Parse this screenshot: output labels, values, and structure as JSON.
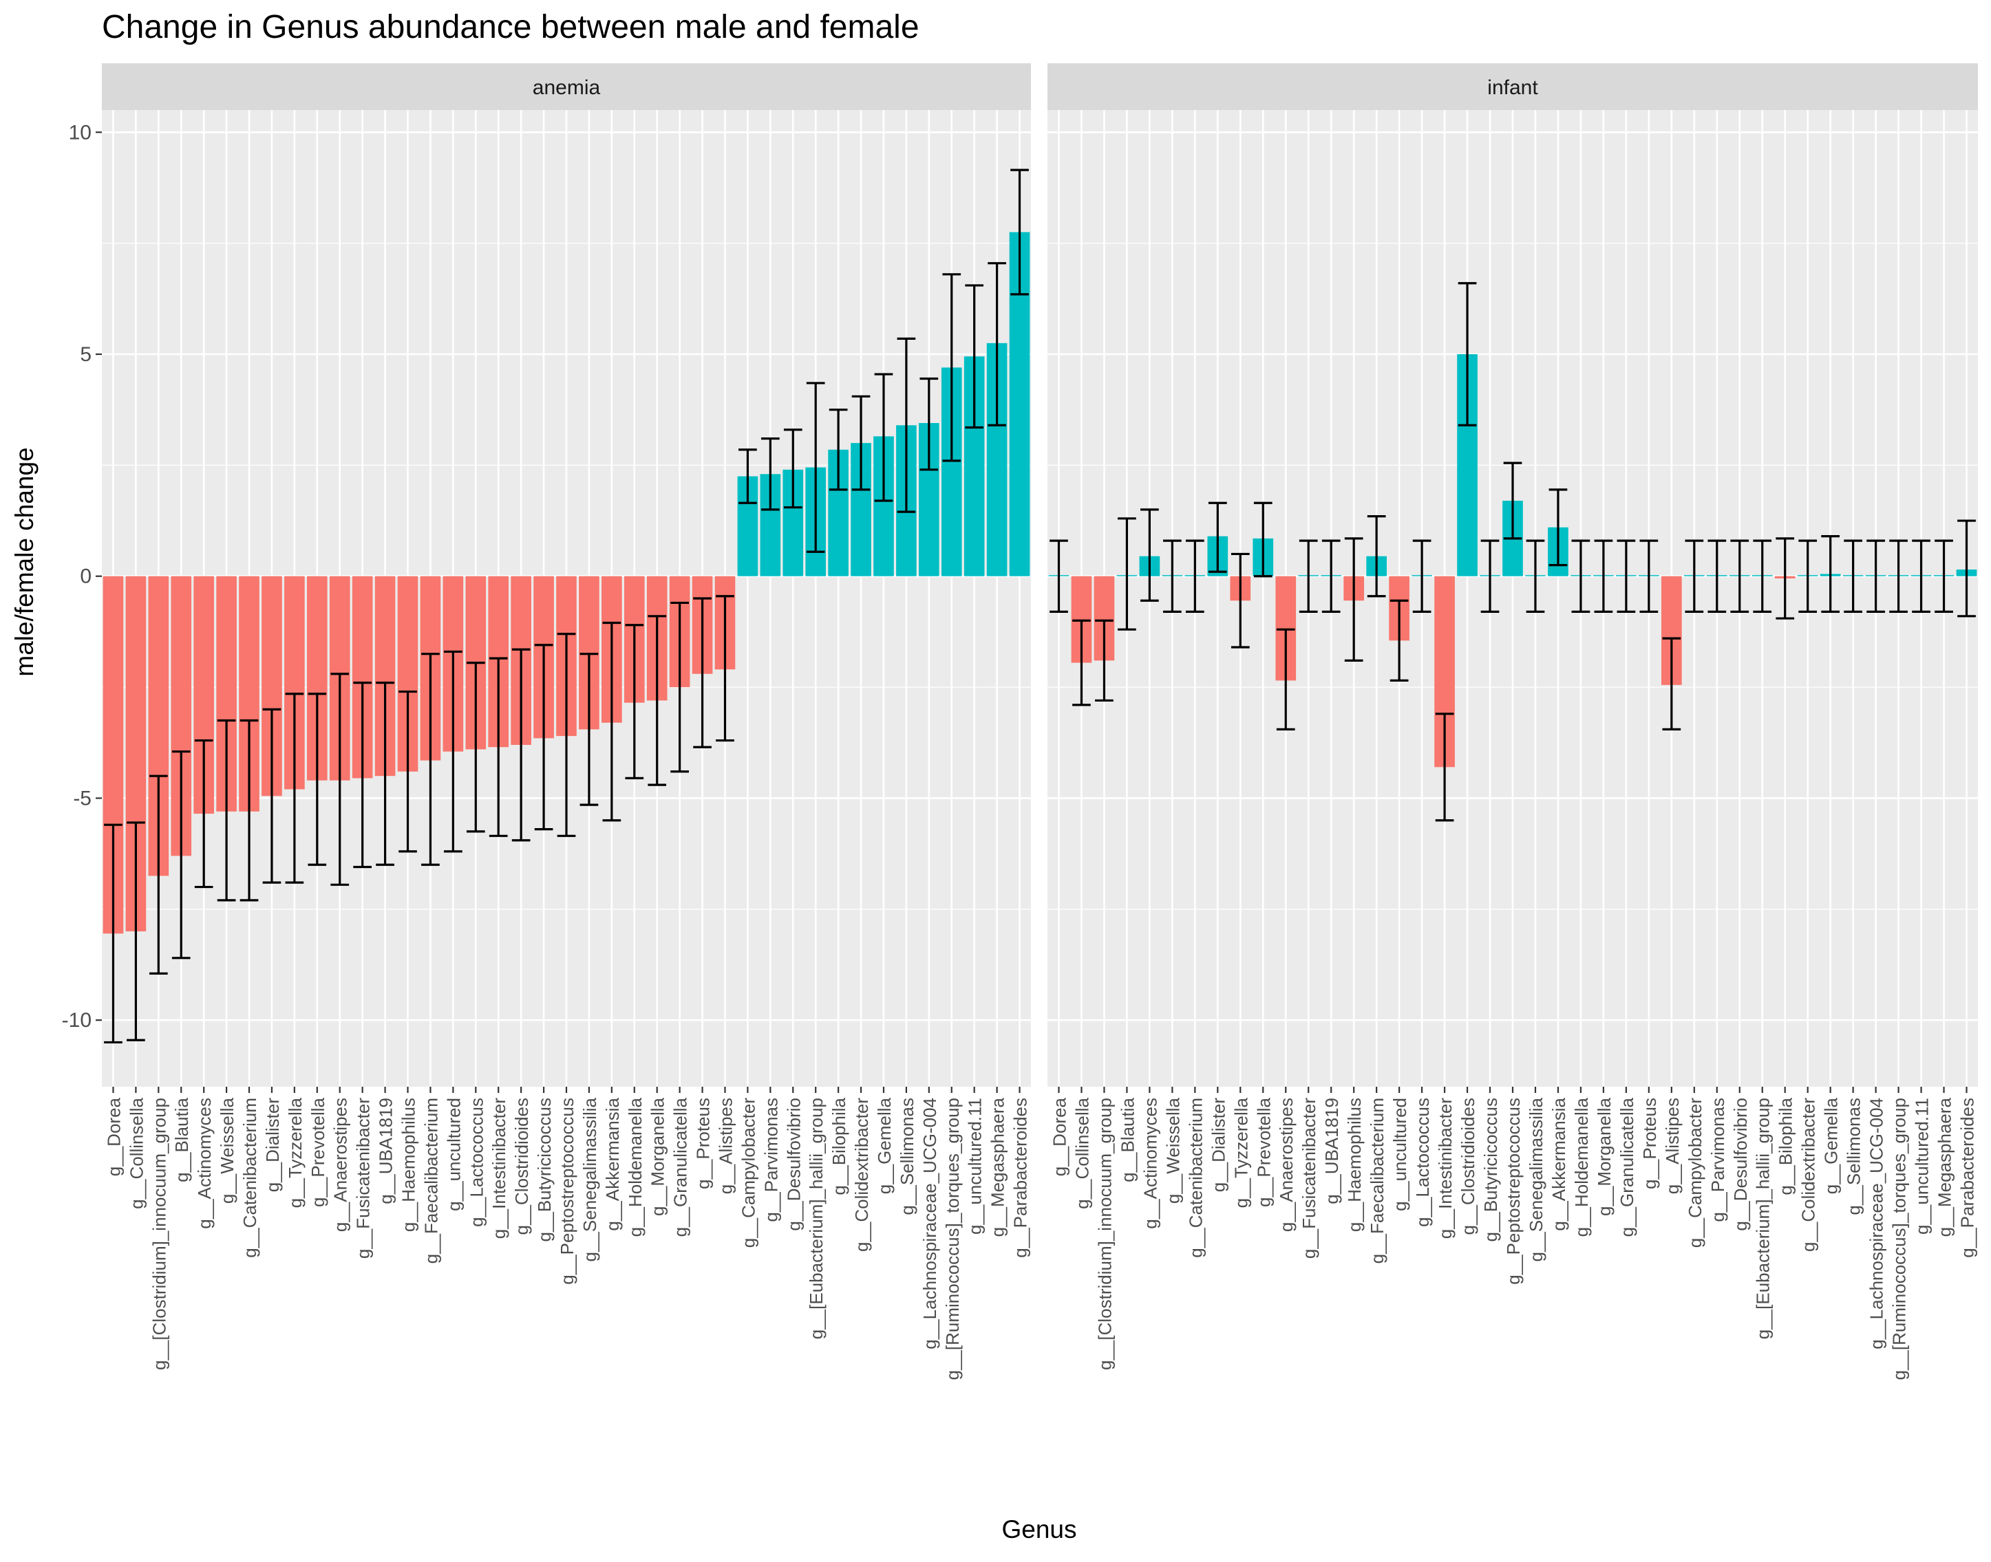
{
  "chart_data": {
    "type": "bar",
    "title": "Change in Genus abundance between male and female",
    "xlabel": "Genus",
    "ylabel": "male/female change",
    "ylim": [
      -11.5,
      10.5
    ],
    "yticks": [
      10,
      5,
      0,
      -5,
      -10
    ],
    "ytick_labels": [
      "10",
      "5",
      "0",
      "-5",
      "-10"
    ],
    "grid": true,
    "legend": "none",
    "colors": {
      "negative": "#F8766D",
      "positive": "#00BFC4",
      "panel": "#EBEBEB",
      "strip": "#D9D9D9",
      "grid": "#FFFFFF",
      "errorbar": "#000000"
    },
    "categories": [
      "g__Dorea",
      "g__Collinsella",
      "g__[Clostridium]_innocuum_group",
      "g__Blautia",
      "g__Actinomyces",
      "g__Weissella",
      "g__Catenibacterium",
      "g__Dialister",
      "g__Tyzzerella",
      "g__Prevotella",
      "g__Anaerostipes",
      "g__Fusicatenibacter",
      "g__UBA1819",
      "g__Haemophilus",
      "g__Faecalibacterium",
      "g__uncultured",
      "g__Lactococcus",
      "g__Intestinibacter",
      "g__Clostridioides",
      "g__Butyricicoccus",
      "g__Peptostreptococcus",
      "g__Senegalimassilia",
      "g__Akkermansia",
      "g__Holdemanella",
      "g__Morganella",
      "g__Granulicatella",
      "g__Proteus",
      "g__Alistipes",
      "g__Campylobacter",
      "g__Parvimonas",
      "g__Desulfovibrio",
      "g__[Eubacterium]_hallii_group",
      "g__Bilophila",
      "g__Colidextribacter",
      "g__Gemella",
      "g__Sellimonas",
      "g__Lachnospiraceae_UCG-004",
      "g__[Ruminococcus]_torques_group",
      "g__uncultured.11",
      "g__Megasphaera",
      "g__Parabacteroides"
    ],
    "series": [
      {
        "name": "anemia",
        "values": [
          -8.05,
          -8.0,
          -6.75,
          -6.3,
          -5.35,
          -5.3,
          -5.3,
          -4.95,
          -4.8,
          -4.6,
          -4.6,
          -4.55,
          -4.5,
          -4.4,
          -4.15,
          -3.95,
          -3.9,
          -3.85,
          -3.8,
          -3.65,
          -3.6,
          -3.45,
          -3.3,
          -2.85,
          -2.8,
          -2.5,
          -2.2,
          -2.1,
          2.25,
          2.3,
          2.4,
          2.45,
          2.85,
          3.0,
          3.15,
          3.4,
          3.45,
          4.7,
          4.95,
          5.25,
          7.75
        ],
        "lower": [
          -10.5,
          -10.45,
          -8.95,
          -8.6,
          -7.0,
          -7.3,
          -7.3,
          -6.9,
          -6.9,
          -6.5,
          -6.95,
          -6.55,
          -6.5,
          -6.2,
          -6.5,
          -6.2,
          -5.75,
          -5.85,
          -5.95,
          -5.7,
          -5.85,
          -5.15,
          -5.5,
          -4.55,
          -4.7,
          -4.4,
          -3.85,
          -3.7,
          1.65,
          1.5,
          1.55,
          0.55,
          1.95,
          1.95,
          1.7,
          1.45,
          2.4,
          2.6,
          3.35,
          3.4,
          6.35
        ],
        "upper": [
          -5.6,
          -5.55,
          -4.5,
          -3.95,
          -3.7,
          -3.25,
          -3.25,
          -3.0,
          -2.65,
          -2.65,
          -2.2,
          -2.4,
          -2.4,
          -2.6,
          -1.75,
          -1.7,
          -1.95,
          -1.85,
          -1.65,
          -1.55,
          -1.3,
          -1.75,
          -1.05,
          -1.1,
          -0.9,
          -0.6,
          -0.5,
          -0.45,
          2.85,
          3.1,
          3.3,
          4.35,
          3.75,
          4.05,
          4.55,
          5.35,
          4.45,
          6.8,
          6.55,
          7.05,
          9.15
        ]
      },
      {
        "name": "infant",
        "values": [
          0.0,
          -1.95,
          -1.9,
          0.02,
          0.45,
          0.0,
          0.0,
          0.9,
          -0.55,
          0.85,
          -2.35,
          0.0,
          0.0,
          -0.55,
          0.45,
          -1.45,
          0.0,
          -4.3,
          5.0,
          0.0,
          1.7,
          0.0,
          1.1,
          0.0,
          0.0,
          0.0,
          0.0,
          -2.45,
          0.0,
          0.0,
          0.0,
          0.0,
          -0.05,
          0.0,
          0.05,
          0.0,
          0.0,
          0.0,
          0.0,
          0.0,
          0.15
        ],
        "lower": [
          -0.8,
          -2.9,
          -2.8,
          -1.2,
          -0.55,
          -0.8,
          -0.8,
          0.1,
          -1.6,
          0.0,
          -3.45,
          -0.8,
          -0.8,
          -1.9,
          -0.45,
          -2.35,
          -0.8,
          -5.5,
          3.4,
          -0.8,
          0.85,
          -0.8,
          0.25,
          -0.8,
          -0.8,
          -0.8,
          -0.8,
          -3.45,
          -0.8,
          -0.8,
          -0.8,
          -0.8,
          -0.95,
          -0.8,
          -0.8,
          -0.8,
          -0.8,
          -0.8,
          -0.8,
          -0.8,
          -0.9
        ],
        "upper": [
          0.8,
          -1.0,
          -1.0,
          1.3,
          1.5,
          0.8,
          0.8,
          1.65,
          0.5,
          1.65,
          -1.2,
          0.8,
          0.8,
          0.85,
          1.35,
          -0.55,
          0.8,
          -3.1,
          6.6,
          0.8,
          2.55,
          0.8,
          1.95,
          0.8,
          0.8,
          0.8,
          0.8,
          -1.4,
          0.8,
          0.8,
          0.8,
          0.8,
          0.85,
          0.8,
          0.9,
          0.8,
          0.8,
          0.8,
          0.8,
          0.8,
          1.25
        ]
      }
    ]
  }
}
